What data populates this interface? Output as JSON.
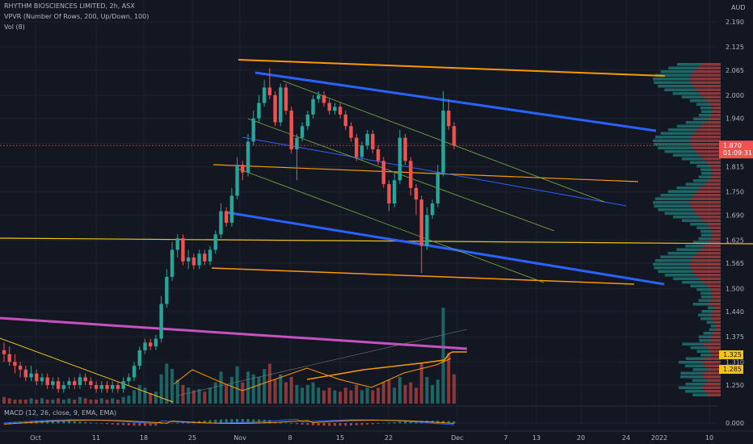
{
  "header": {
    "symbol_line": "RHYTHM BIOSCIENCES LIMITED, 2h, ASX",
    "vpvr_line": "VPVR (Number Of Rows, 200, Up/Down, 100)",
    "vol_line": "Vol (8)",
    "macd_line": "MACD (12, 26, close, 9, EMA, EMA)",
    "currency": "AUD"
  },
  "colors": {
    "background": "#131722",
    "up": "#26a69a",
    "down": "#ef5350",
    "orange": "#ff9800",
    "blue": "#2962ff",
    "yellow": "#f0c419",
    "magenta": "#c751c0",
    "green_line": "#7cb342"
  },
  "chart_data": {
    "type": "candlestick",
    "y_axis": {
      "ticks": [
        "2.190",
        "2.125",
        "2.065",
        "2.000",
        "1.940",
        "1.875",
        "1.815",
        "1.750",
        "1.690",
        "1.625",
        "1.565",
        "1.500",
        "1.440",
        "1.375",
        "1.310",
        "1.250"
      ],
      "ylim": [
        1.19,
        2.22
      ]
    },
    "x_axis": {
      "ticks": [
        "Oct",
        "11",
        "18",
        "25",
        "Nov",
        "8",
        "15",
        "22",
        "Dec",
        "7",
        "13",
        "20",
        "24",
        "2022",
        "10"
      ]
    },
    "price_labels": {
      "last": "1.870",
      "countdown": "01:09:31",
      "level_a": "1.325",
      "level_b": "1.285"
    },
    "macd_axis_label": "0.000",
    "candles": [
      [
        1.34,
        1.33,
        1.36,
        1.31
      ],
      [
        1.33,
        1.31,
        1.35,
        1.3
      ],
      [
        1.31,
        1.3,
        1.33,
        1.28
      ],
      [
        1.3,
        1.29,
        1.31,
        1.27
      ],
      [
        1.29,
        1.27,
        1.3,
        1.26
      ],
      [
        1.27,
        1.28,
        1.3,
        1.26
      ],
      [
        1.28,
        1.26,
        1.29,
        1.25
      ],
      [
        1.26,
        1.27,
        1.28,
        1.25
      ],
      [
        1.27,
        1.25,
        1.28,
        1.24
      ],
      [
        1.25,
        1.26,
        1.27,
        1.24
      ],
      [
        1.26,
        1.24,
        1.27,
        1.23
      ],
      [
        1.24,
        1.25,
        1.26,
        1.23
      ],
      [
        1.25,
        1.26,
        1.27,
        1.24
      ],
      [
        1.26,
        1.25,
        1.27,
        1.24
      ],
      [
        1.25,
        1.27,
        1.28,
        1.24
      ],
      [
        1.27,
        1.26,
        1.28,
        1.25
      ],
      [
        1.26,
        1.25,
        1.27,
        1.24
      ],
      [
        1.25,
        1.24,
        1.26,
        1.23
      ],
      [
        1.24,
        1.25,
        1.26,
        1.23
      ],
      [
        1.25,
        1.24,
        1.26,
        1.23
      ],
      [
        1.24,
        1.25,
        1.26,
        1.23
      ],
      [
        1.25,
        1.24,
        1.26,
        1.23
      ],
      [
        1.24,
        1.26,
        1.27,
        1.23
      ],
      [
        1.26,
        1.27,
        1.28,
        1.25
      ],
      [
        1.27,
        1.3,
        1.31,
        1.26
      ],
      [
        1.3,
        1.34,
        1.35,
        1.29
      ],
      [
        1.34,
        1.36,
        1.37,
        1.33
      ],
      [
        1.36,
        1.35,
        1.37,
        1.34
      ],
      [
        1.35,
        1.37,
        1.38,
        1.34
      ],
      [
        1.37,
        1.46,
        1.48,
        1.36
      ],
      [
        1.46,
        1.53,
        1.55,
        1.45
      ],
      [
        1.53,
        1.6,
        1.62,
        1.52
      ],
      [
        1.6,
        1.63,
        1.64,
        1.58
      ],
      [
        1.63,
        1.57,
        1.64,
        1.56
      ],
      [
        1.57,
        1.58,
        1.6,
        1.55
      ],
      [
        1.58,
        1.56,
        1.59,
        1.55
      ],
      [
        1.56,
        1.59,
        1.6,
        1.55
      ],
      [
        1.59,
        1.57,
        1.6,
        1.56
      ],
      [
        1.57,
        1.6,
        1.61,
        1.56
      ],
      [
        1.6,
        1.64,
        1.65,
        1.59
      ],
      [
        1.64,
        1.7,
        1.72,
        1.63
      ],
      [
        1.7,
        1.67,
        1.71,
        1.66
      ],
      [
        1.67,
        1.74,
        1.76,
        1.66
      ],
      [
        1.74,
        1.82,
        1.84,
        1.73
      ],
      [
        1.82,
        1.8,
        1.83,
        1.78
      ],
      [
        1.8,
        1.88,
        1.9,
        1.79
      ],
      [
        1.88,
        1.94,
        1.96,
        1.87
      ],
      [
        1.94,
        1.98,
        2.0,
        1.93
      ],
      [
        1.98,
        2.02,
        2.04,
        1.97
      ],
      [
        2.02,
        2.0,
        2.07,
        1.99
      ],
      [
        2.0,
        1.93,
        2.01,
        1.92
      ],
      [
        1.93,
        2.02,
        2.03,
        1.92
      ],
      [
        2.02,
        1.96,
        2.03,
        1.95
      ],
      [
        1.96,
        1.86,
        1.97,
        1.85
      ],
      [
        1.86,
        1.89,
        1.9,
        1.78
      ],
      [
        1.89,
        1.92,
        1.93,
        1.88
      ],
      [
        1.92,
        1.95,
        1.96,
        1.91
      ],
      [
        1.95,
        1.99,
        2.0,
        1.94
      ],
      [
        1.99,
        2.0,
        2.01,
        1.98
      ],
      [
        2.0,
        1.98,
        2.01,
        1.97
      ],
      [
        1.98,
        1.96,
        1.99,
        1.95
      ],
      [
        1.96,
        1.97,
        1.98,
        1.95
      ],
      [
        1.97,
        1.95,
        1.98,
        1.94
      ],
      [
        1.95,
        1.92,
        1.96,
        1.91
      ],
      [
        1.92,
        1.89,
        1.93,
        1.88
      ],
      [
        1.89,
        1.84,
        1.9,
        1.83
      ],
      [
        1.84,
        1.87,
        1.88,
        1.83
      ],
      [
        1.87,
        1.9,
        1.91,
        1.86
      ],
      [
        1.9,
        1.86,
        1.91,
        1.85
      ],
      [
        1.86,
        1.83,
        1.87,
        1.82
      ],
      [
        1.83,
        1.77,
        1.84,
        1.76
      ],
      [
        1.77,
        1.72,
        1.78,
        1.7
      ],
      [
        1.72,
        1.78,
        1.8,
        1.71
      ],
      [
        1.78,
        1.89,
        1.91,
        1.77
      ],
      [
        1.89,
        1.83,
        1.9,
        1.82
      ],
      [
        1.83,
        1.76,
        1.84,
        1.74
      ],
      [
        1.76,
        1.73,
        1.77,
        1.69
      ],
      [
        1.73,
        1.61,
        1.74,
        1.54
      ],
      [
        1.61,
        1.69,
        1.71,
        1.6
      ],
      [
        1.69,
        1.72,
        1.73,
        1.68
      ],
      [
        1.72,
        1.8,
        1.82,
        1.71
      ],
      [
        1.8,
        1.96,
        2.01,
        1.79
      ],
      [
        1.96,
        1.92,
        1.99,
        1.91
      ],
      [
        1.92,
        1.87,
        1.93,
        1.86
      ]
    ],
    "volume": [
      5,
      4,
      3,
      3,
      3,
      4,
      3,
      4,
      3,
      3,
      4,
      3,
      4,
      3,
      5,
      4,
      3,
      3,
      4,
      3,
      4,
      3,
      5,
      6,
      10,
      14,
      12,
      8,
      9,
      22,
      30,
      26,
      18,
      14,
      12,
      10,
      11,
      9,
      12,
      16,
      24,
      14,
      20,
      28,
      16,
      24,
      22,
      20,
      26,
      30,
      18,
      22,
      16,
      20,
      14,
      12,
      14,
      16,
      12,
      10,
      12,
      10,
      9,
      12,
      10,
      14,
      10,
      12,
      10,
      12,
      16,
      18,
      12,
      20,
      14,
      16,
      12,
      30,
      20,
      14,
      18,
      72,
      38,
      22
    ]
  }
}
